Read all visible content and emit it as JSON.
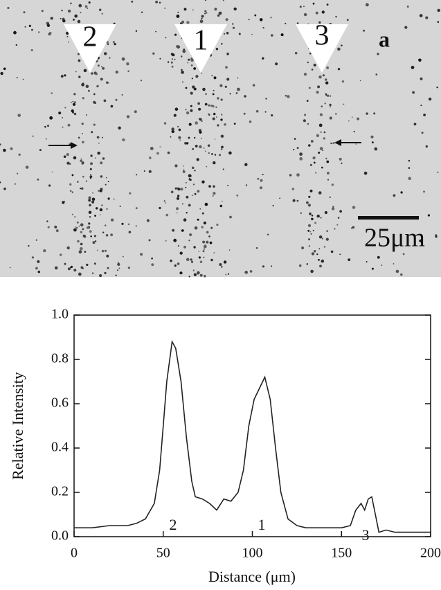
{
  "image": {
    "markers": [
      "2",
      "1",
      "3"
    ],
    "panel_label": "a",
    "scale_bar": "25μm"
  },
  "chart_data": {
    "type": "line",
    "x_label": "Distance (μm)",
    "y_label": "Relative Intensity",
    "annotations": [
      "2",
      "1",
      "3"
    ],
    "x": [
      0,
      10,
      20,
      30,
      35,
      40,
      45,
      48,
      50,
      52,
      55,
      57,
      60,
      63,
      66,
      68,
      72,
      76,
      80,
      84,
      88,
      92,
      95,
      98,
      101,
      104,
      107,
      110,
      113,
      116,
      120,
      125,
      130,
      140,
      150,
      155,
      158,
      161,
      163,
      165,
      167,
      169,
      171,
      175,
      180,
      190,
      200
    ],
    "values": [
      0.04,
      0.04,
      0.05,
      0.05,
      0.06,
      0.08,
      0.15,
      0.3,
      0.5,
      0.7,
      0.88,
      0.85,
      0.7,
      0.45,
      0.25,
      0.18,
      0.17,
      0.15,
      0.12,
      0.17,
      0.16,
      0.2,
      0.3,
      0.5,
      0.62,
      0.67,
      0.72,
      0.62,
      0.4,
      0.2,
      0.08,
      0.05,
      0.04,
      0.04,
      0.04,
      0.05,
      0.12,
      0.15,
      0.12,
      0.17,
      0.18,
      0.1,
      0.02,
      0.03,
      0.02,
      0.02,
      0.02
    ],
    "color": "#222222",
    "xlim": [
      0,
      200
    ],
    "xticks": [
      0,
      50,
      100,
      150,
      200
    ],
    "ylim": [
      0,
      1
    ],
    "yticks": [
      {
        "value": 0,
        "label": "0.0"
      },
      0.2,
      0.4,
      0.6,
      0.8,
      {
        "value": 1,
        "label": "1.0"
      }
    ]
  }
}
